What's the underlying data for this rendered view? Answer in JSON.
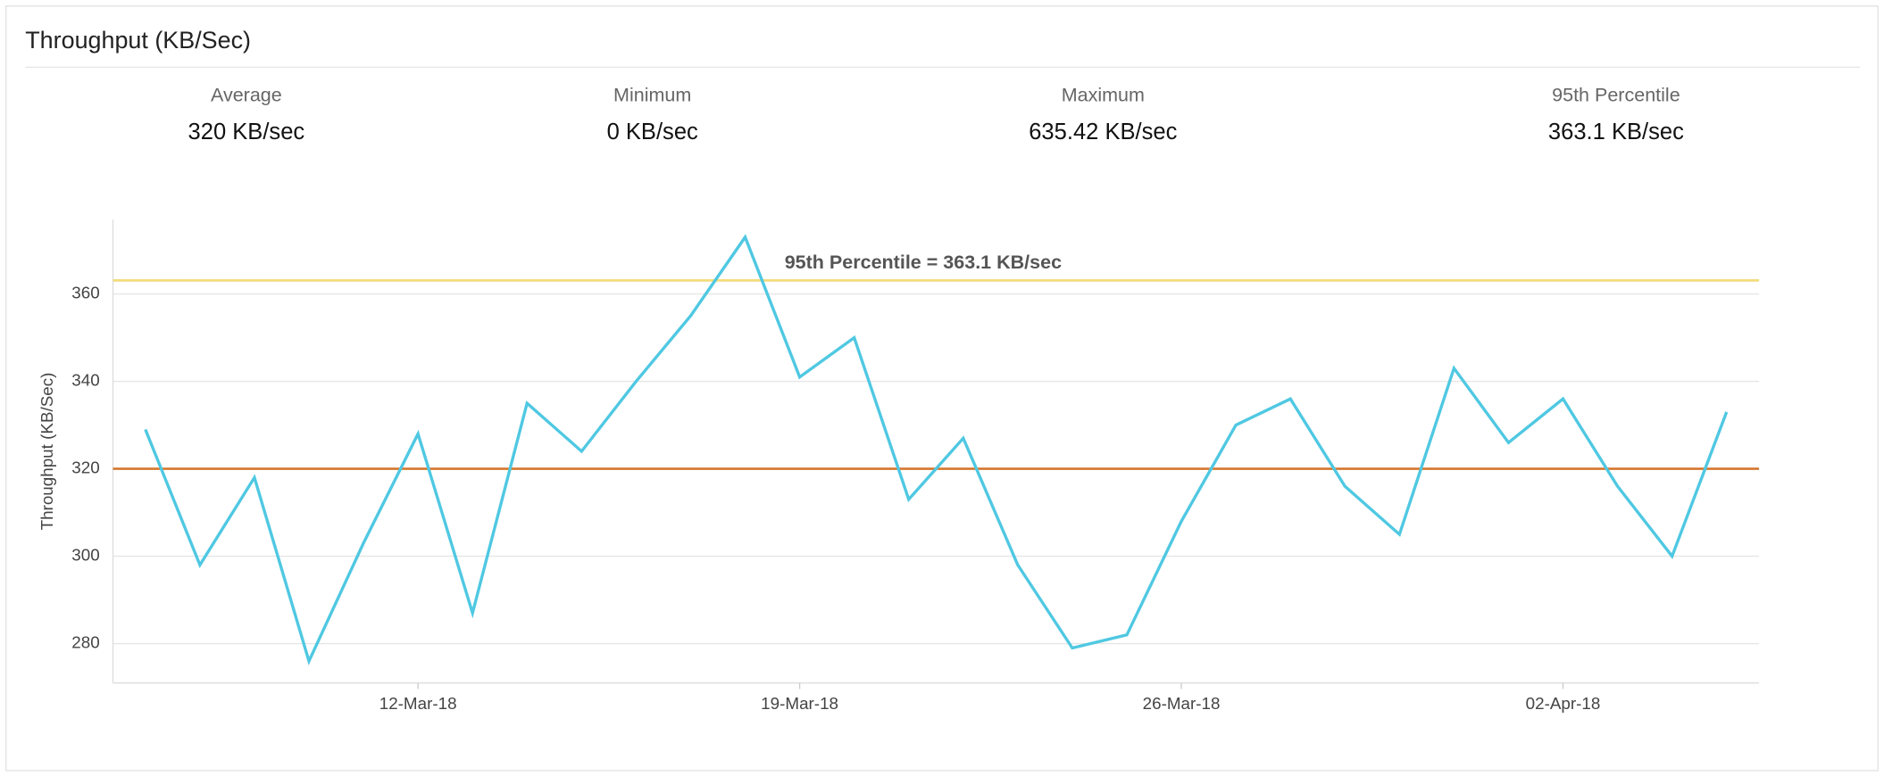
{
  "header": {
    "title": "Throughput (KB/Sec)",
    "stats": [
      {
        "label": "Average",
        "value": "320 KB/sec"
      },
      {
        "label": "Minimum",
        "value": "0 KB/sec"
      },
      {
        "label": "Maximum",
        "value": "635.42 KB/sec"
      },
      {
        "label": "95th Percentile",
        "value": "363.1 KB/sec"
      }
    ]
  },
  "chart_data": {
    "type": "line",
    "y_label": "Throughput (KB/Sec)",
    "x": [
      "07-Mar-18",
      "08-Mar-18",
      "09-Mar-18",
      "10-Mar-18",
      "11-Mar-18",
      "12-Mar-18",
      "13-Mar-18",
      "14-Mar-18",
      "15-Mar-18",
      "16-Mar-18",
      "17-Mar-18",
      "18-Mar-18",
      "19-Mar-18",
      "20-Mar-18",
      "21-Mar-18",
      "22-Mar-18",
      "23-Mar-18",
      "24-Mar-18",
      "25-Mar-18",
      "26-Mar-18",
      "27-Mar-18",
      "28-Mar-18",
      "29-Mar-18",
      "30-Mar-18",
      "31-Mar-18",
      "01-Apr-18",
      "02-Apr-18",
      "03-Apr-18",
      "04-Apr-18",
      "05-Apr-18"
    ],
    "xticks": [
      "12-Mar-18",
      "19-Mar-18",
      "26-Mar-18",
      "02-Apr-18"
    ],
    "series": [
      {
        "name": "Throughput",
        "color": "#4fc8e2",
        "values": [
          329,
          298,
          318,
          276,
          303,
          328,
          287,
          335,
          324,
          340,
          355,
          373,
          341,
          350,
          313,
          327,
          298,
          279,
          282,
          308,
          330,
          336,
          316,
          305,
          343,
          326,
          336,
          316,
          300,
          333
        ]
      }
    ],
    "reference_lines": [
      {
        "value": 363.1,
        "color": "#f3dc7c",
        "label": "95th Percentile = 363.1 KB/sec"
      },
      {
        "value": 320,
        "color": "#d4772e"
      }
    ],
    "ylim": [
      271,
      377
    ],
    "yticks": [
      280,
      300,
      320,
      340,
      360
    ],
    "grid": true
  }
}
